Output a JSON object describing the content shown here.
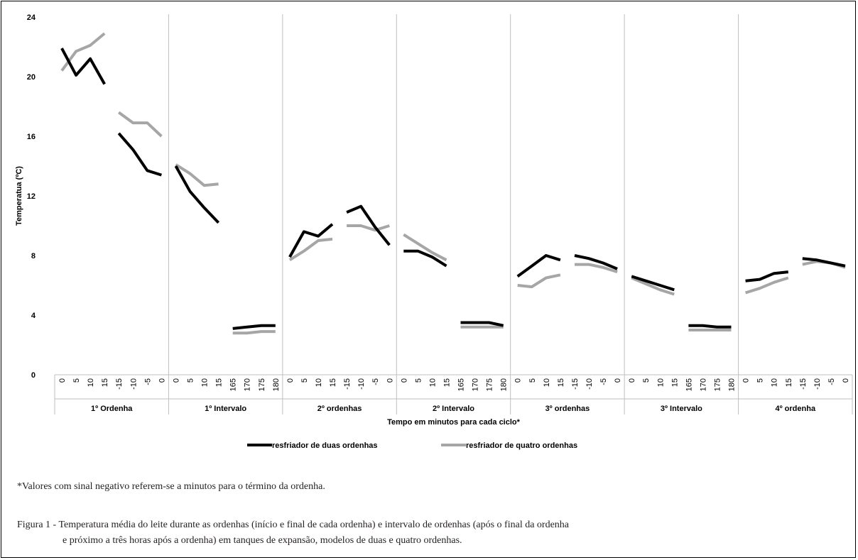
{
  "chart_data": {
    "type": "line",
    "ylabel": "Temperatua (ºC)",
    "xlabel": "Tempo em minutos para cada ciclo*",
    "ylim": [
      0,
      24
    ],
    "yticks": [
      "0",
      "4",
      "8",
      "12",
      "16",
      "20",
      "24"
    ],
    "grid": false,
    "legend_position": "bottom",
    "groups": [
      {
        "label": "1º Ordenha",
        "ticks": [
          "0",
          "5",
          "10",
          "15",
          "-15",
          "-10",
          "-5",
          "0"
        ]
      },
      {
        "label": "1º Intervalo",
        "ticks": [
          "0",
          "5",
          "10",
          "15",
          "165",
          "170",
          "175",
          "180"
        ]
      },
      {
        "label": "2º ordenhas",
        "ticks": [
          "0",
          "5",
          "10",
          "15",
          "-15",
          "-10",
          "-5",
          "0"
        ]
      },
      {
        "label": "2º Intervalo",
        "ticks": [
          "0",
          "5",
          "10",
          "15",
          "165",
          "170",
          "175",
          "180"
        ]
      },
      {
        "label": "3º ordenhas",
        "ticks": [
          "0",
          "5",
          "10",
          "15",
          "-15",
          "-10",
          "-5",
          "0"
        ]
      },
      {
        "label": "3º Intervalo",
        "ticks": [
          "0",
          "5",
          "10",
          "15",
          "165",
          "170",
          "175",
          "180"
        ]
      },
      {
        "label": "4º ordenha",
        "ticks": [
          "0",
          "5",
          "10",
          "15",
          "-15",
          "-10",
          "-5",
          "0"
        ]
      }
    ],
    "series": [
      {
        "name": "resfriador de duas ordenhas",
        "color": "#000000",
        "values": [
          [
            21.9,
            20.1,
            21.2,
            19.5,
            16.2,
            15.1,
            13.7,
            13.4
          ],
          [
            14.0,
            12.3,
            11.2,
            10.2,
            3.1,
            3.2,
            3.3,
            3.3
          ],
          [
            7.9,
            9.6,
            9.3,
            10.1,
            10.9,
            11.3,
            9.9,
            8.7
          ],
          [
            8.3,
            8.3,
            7.9,
            7.3,
            3.5,
            3.5,
            3.5,
            3.3
          ],
          [
            6.6,
            7.3,
            8.0,
            7.7,
            8.0,
            7.8,
            7.5,
            7.1
          ],
          [
            6.6,
            6.3,
            6.0,
            5.7,
            3.3,
            3.3,
            3.2,
            3.2
          ],
          [
            6.3,
            6.4,
            6.8,
            6.9,
            7.8,
            7.7,
            7.5,
            7.3
          ]
        ]
      },
      {
        "name": "resfriador de quatro ordenhas",
        "color": "#a6a6a6",
        "values": [
          [
            20.4,
            21.7,
            22.1,
            22.9,
            17.6,
            16.9,
            16.9,
            16.0
          ],
          [
            14.1,
            13.5,
            12.7,
            12.8,
            2.8,
            2.8,
            2.9,
            2.9
          ],
          [
            7.7,
            8.3,
            9.0,
            9.1,
            10.0,
            10.0,
            9.7,
            10.0
          ],
          [
            9.4,
            8.8,
            8.2,
            7.7,
            3.2,
            3.2,
            3.2,
            3.2
          ],
          [
            6.0,
            5.9,
            6.5,
            6.7,
            7.4,
            7.4,
            7.2,
            6.9
          ],
          [
            6.5,
            6.1,
            5.7,
            5.4,
            3.0,
            3.0,
            3.0,
            3.0
          ],
          [
            5.5,
            5.8,
            6.2,
            6.5,
            7.4,
            7.6,
            7.5,
            7.2
          ]
        ]
      }
    ]
  },
  "footnote": "*Valores com sinal negativo referem-se a minutos para o término da ordenha.",
  "caption": {
    "line1": "Figura 1 - Temperatura média do leite durante as ordenhas (início e final de cada ordenha) e intervalo de ordenhas (após o final da ordenha",
    "line2": "e próximo a três horas após a ordenha) em tanques de expansão, modelos de duas e quatro ordenhas."
  }
}
